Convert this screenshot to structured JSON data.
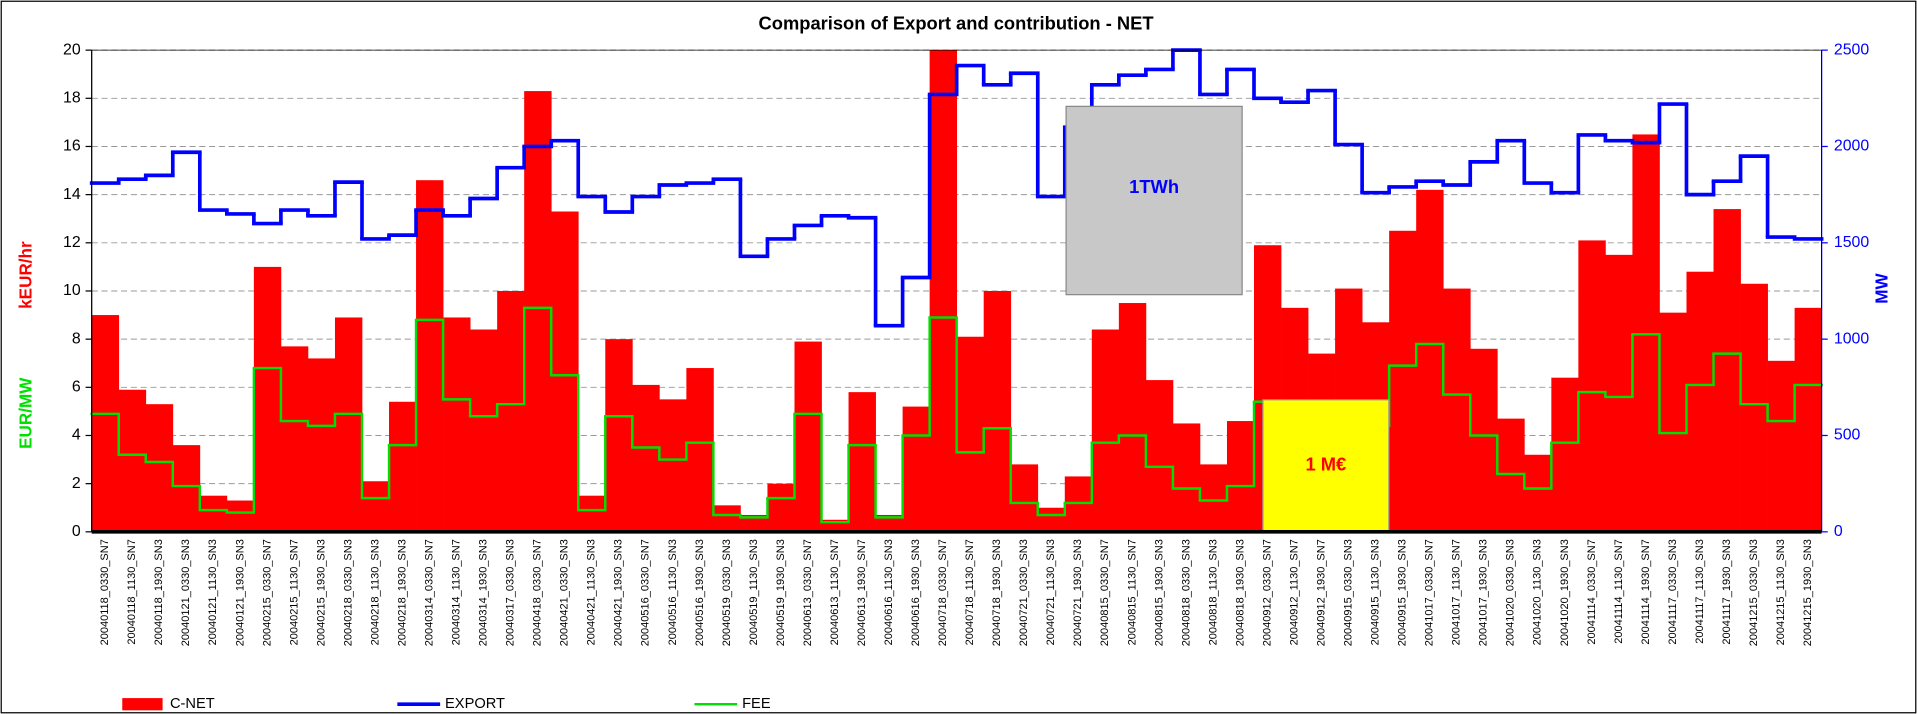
{
  "chart_data": {
    "type": "bar",
    "title": "Comparison of Export and contribution - NET",
    "y_label": "kEUR/hr",
    "y_label_2": "EUR/MW",
    "y2_label": "MW",
    "annotations": [
      "1TWh",
      "1 M€"
    ],
    "legend": "bottom",
    "grid": true,
    "ylim": [
      0,
      20
    ],
    "yticks": [
      0,
      2,
      4,
      6,
      8,
      10,
      12,
      14,
      16,
      18,
      20
    ],
    "y2lim": [
      0,
      2500
    ],
    "y2ticks": [
      0,
      500,
      1000,
      1500,
      2000,
      2500
    ],
    "categories": [
      "20040118_0330_SN7",
      "20040118_1130_SN7",
      "20040118_1930_SN3",
      "20040121_0330_SN3",
      "20040121_1130_SN3",
      "20040121_1930_SN3",
      "20040215_0330_SN7",
      "20040215_1130_SN7",
      "20040215_1930_SN3",
      "20040218_0330_SN3",
      "20040218_1130_SN3",
      "20040218_1930_SN3",
      "20040314_0330_SN7",
      "20040314_1130_SN7",
      "20040314_1930_SN3",
      "20040317_0330_SN3",
      "20040418_0330_SN7",
      "20040421_0330_SN3",
      "20040421_1130_SN3",
      "20040421_1930_SN3",
      "20040516_0330_SN7",
      "20040516_1130_SN3",
      "20040516_1930_SN3",
      "20040519_0330_SN3",
      "20040519_1130_SN3",
      "20040519_1930_SN3",
      "20040613_0330_SN7",
      "20040613_1130_SN7",
      "20040613_1930_SN7",
      "20040616_1130_SN3",
      "20040616_1930_SN3",
      "20040718_0330_SN7",
      "20040718_1130_SN7",
      "20040718_1930_SN3",
      "20040721_0330_SN3",
      "20040721_1130_SN3",
      "20040721_1930_SN3",
      "20040815_0330_SN7",
      "20040815_1130_SN7",
      "20040815_1930_SN3",
      "20040818_0330_SN3",
      "20040818_1130_SN3",
      "20040818_1930_SN3",
      "20040912_0330_SN7",
      "20040912_1130_SN7",
      "20040912_1930_SN7",
      "20040915_0330_SN3",
      "20040915_1130_SN3",
      "20040915_1930_SN3",
      "20041017_0330_SN7",
      "20041017_1130_SN7",
      "20041017_1930_SN3",
      "20041020_0330_SN3",
      "20041020_1130_SN3",
      "20041020_1930_SN3",
      "20041114_0330_SN7",
      "20041114_1130_SN7",
      "20041114_1930_SN7",
      "20041117_0330_SN3",
      "20041117_1130_SN3",
      "20041117_1930_SN3",
      "20041215_0330_SN3",
      "20041215_1130_SN3",
      "20041215_1930_SN3"
    ],
    "series": [
      {
        "name": "C-NET",
        "type": "bar",
        "color": "#ff0000",
        "values": [
          9.0,
          5.9,
          5.3,
          3.6,
          1.5,
          1.3,
          11.0,
          7.7,
          7.2,
          8.9,
          2.1,
          5.4,
          14.6,
          8.9,
          8.4,
          10.0,
          18.3,
          13.3,
          1.5,
          8.0,
          6.1,
          5.5,
          6.8,
          1.1,
          0.7,
          2.0,
          7.9,
          0.5,
          5.8,
          0.7,
          5.2,
          20,
          8.1,
          10.0,
          2.8,
          1.0,
          2.3,
          8.4,
          9.5,
          6.3,
          4.5,
          2.8,
          4.6,
          11.9,
          9.3,
          7.4,
          10.1,
          8.7,
          12.5,
          14.2,
          10.1,
          7.6,
          4.7,
          3.2,
          6.4,
          12.1,
          11.5,
          16.5,
          9.1,
          10.8,
          13.4,
          10.3,
          7.1,
          9.3
        ]
      },
      {
        "name": "EXPORT",
        "type": "line",
        "axis": "y2",
        "color": "#0000ff",
        "values": [
          1810,
          1830,
          1850,
          1970,
          1670,
          1650,
          1600,
          1670,
          1640,
          1815,
          1520,
          1540,
          1670,
          1640,
          1730,
          1890,
          2000,
          2030,
          1740,
          1660,
          1740,
          1800,
          1810,
          1830,
          1430,
          1520,
          1590,
          1640,
          1630,
          1070,
          1320,
          2270,
          2420,
          2320,
          2380,
          1740,
          2100,
          2320,
          2370,
          2400,
          2500,
          2270,
          2400,
          2250,
          2230,
          2290,
          2010,
          1760,
          1790,
          1820,
          1800,
          1920,
          2030,
          1810,
          1760,
          2060,
          2030,
          2020,
          2220,
          1750,
          1820,
          1950,
          1530,
          1520
        ]
      },
      {
        "name": "FEE",
        "type": "line",
        "color": "#00e000",
        "values": [
          4.9,
          3.2,
          2.9,
          1.9,
          0.9,
          0.8,
          6.8,
          4.6,
          4.4,
          4.9,
          1.4,
          3.6,
          8.8,
          5.5,
          4.8,
          5.3,
          9.3,
          6.5,
          0.9,
          4.8,
          3.5,
          3.0,
          3.7,
          0.7,
          0.6,
          1.4,
          4.9,
          0.4,
          3.6,
          0.6,
          4.0,
          8.9,
          3.3,
          4.3,
          1.2,
          0.7,
          1.2,
          3.7,
          4.0,
          2.7,
          1.8,
          1.3,
          1.9,
          5.4,
          4.2,
          3.3,
          4.9,
          4.4,
          6.9,
          7.8,
          5.7,
          4.0,
          2.4,
          1.8,
          3.7,
          5.8,
          5.6,
          8.2,
          4.1,
          6.1,
          7.4,
          5.3,
          4.6,
          6.1
        ]
      }
    ]
  }
}
